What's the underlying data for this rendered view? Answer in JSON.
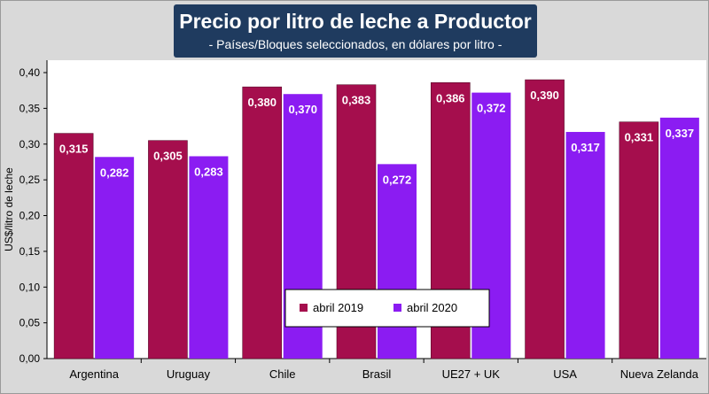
{
  "header": {
    "title": "Precio por litro de leche a Productor",
    "subtitle": "- Países/Bloques seleccionados, en dólares por litro -"
  },
  "chart_data": {
    "type": "bar",
    "title": "Precio por litro de leche a Productor",
    "subtitle": "- Países/Bloques seleccionados, en dólares por litro -",
    "xlabel": "",
    "ylabel": "US$/litro de leche",
    "ylim": [
      0,
      0.4
    ],
    "yticks": [
      "0,00",
      "0,05",
      "0,10",
      "0,15",
      "0,20",
      "0,25",
      "0,30",
      "0,35",
      "0,40"
    ],
    "categories": [
      "Argentina",
      "Uruguay",
      "Chile",
      "Brasil",
      "UE27 + UK",
      "USA",
      "Nueva Zelanda"
    ],
    "series": [
      {
        "name": "abril 2019",
        "color": "#a50e4d",
        "values": [
          0.315,
          0.305,
          0.38,
          0.383,
          0.386,
          0.39,
          0.331
        ],
        "labels": [
          "0,315",
          "0,305",
          "0,380",
          "0,383",
          "0,386",
          "0,390",
          "0,331"
        ]
      },
      {
        "name": "abril 2020",
        "color": "#8b1cf2",
        "values": [
          0.282,
          0.283,
          0.37,
          0.272,
          0.372,
          0.317,
          0.337
        ],
        "labels": [
          "0,282",
          "0,283",
          "0,370",
          "0,272",
          "0,372",
          "0,317",
          "0,337"
        ]
      }
    ],
    "grid": false,
    "legend_position": "bottom-center, inside plot"
  }
}
